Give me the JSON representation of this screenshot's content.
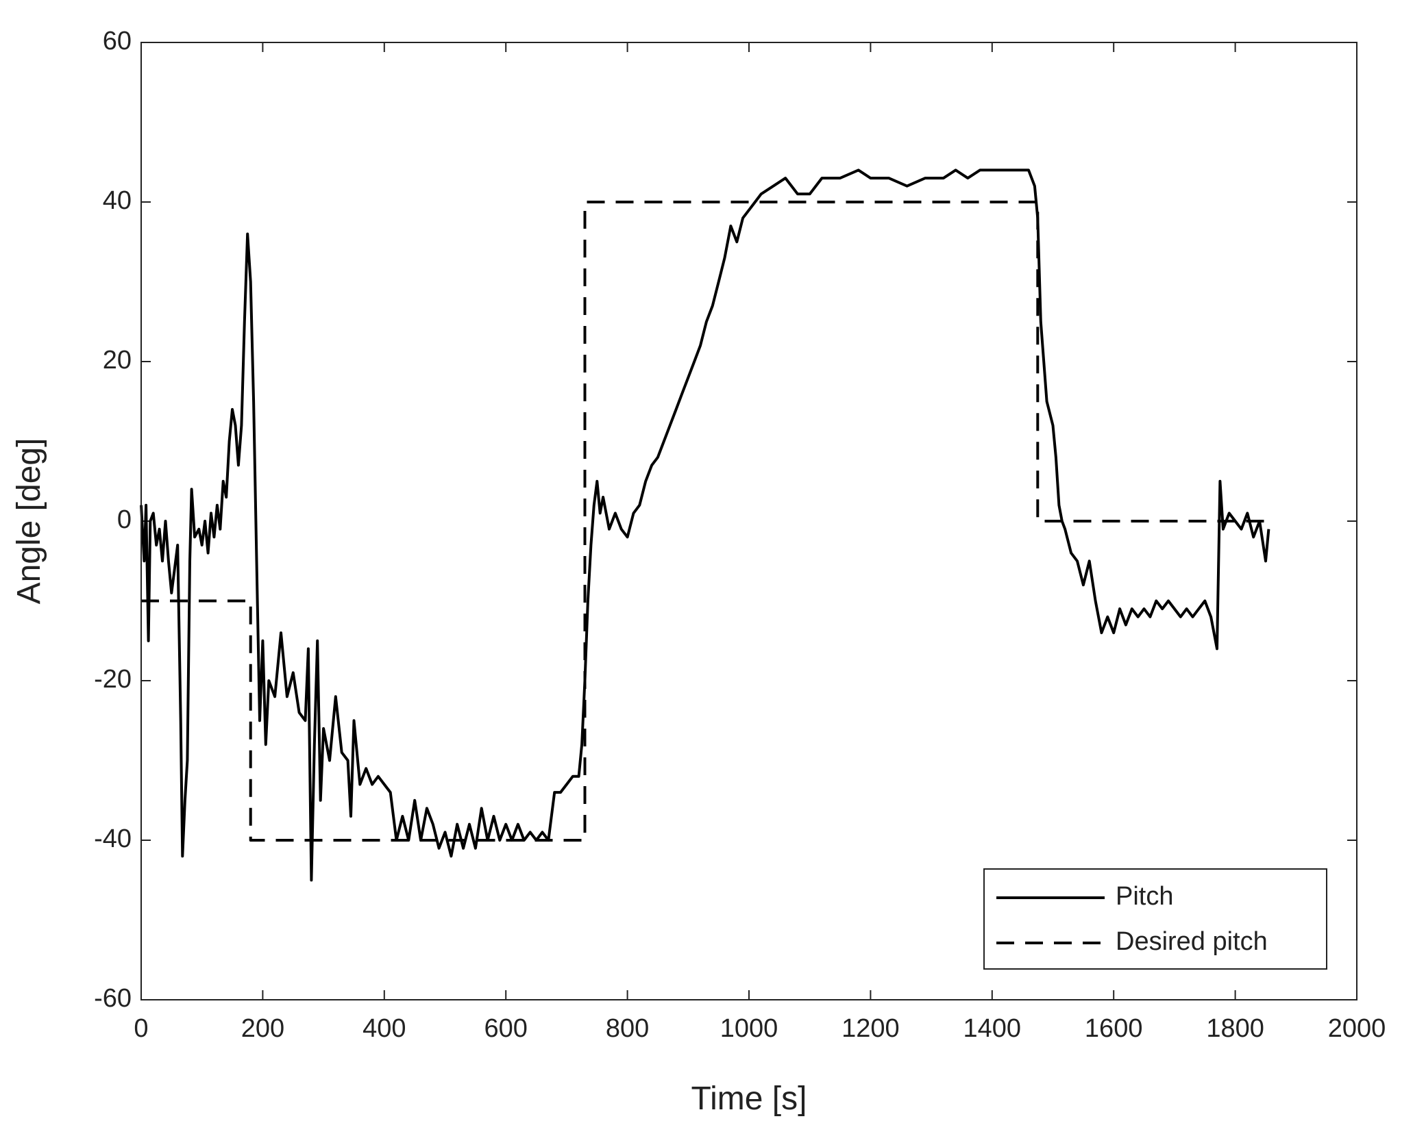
{
  "chart_data": {
    "type": "line",
    "xlabel": "Time [s]",
    "ylabel": "Angle [deg]",
    "xlim": [
      0,
      2000
    ],
    "xticks": [
      0,
      200,
      400,
      600,
      800,
      1000,
      1200,
      1400,
      1600,
      1800,
      2000
    ],
    "ylim": [
      -60,
      60
    ],
    "yticks": [
      -60,
      -40,
      -20,
      0,
      20,
      40,
      60
    ],
    "legend": "lower right",
    "series": [
      {
        "name": "Pitch",
        "color": "#000000",
        "dash": "solid",
        "x": [
          0,
          5,
          8,
          12,
          15,
          20,
          25,
          30,
          35,
          40,
          45,
          50,
          55,
          60,
          65,
          68,
          72,
          76,
          80,
          83,
          88,
          95,
          100,
          105,
          110,
          115,
          120,
          125,
          130,
          135,
          140,
          145,
          150,
          155,
          160,
          165,
          170,
          175,
          180,
          185,
          190,
          195,
          200,
          205,
          210,
          220,
          230,
          240,
          250,
          260,
          270,
          275,
          280,
          285,
          290,
          295,
          300,
          310,
          320,
          330,
          340,
          345,
          350,
          360,
          370,
          380,
          390,
          400,
          410,
          420,
          430,
          440,
          450,
          460,
          470,
          480,
          490,
          500,
          510,
          520,
          530,
          540,
          550,
          560,
          570,
          580,
          590,
          600,
          610,
          620,
          630,
          640,
          650,
          660,
          670,
          680,
          690,
          700,
          710,
          720,
          725,
          730,
          735,
          740,
          745,
          750,
          755,
          760,
          770,
          780,
          790,
          800,
          810,
          820,
          830,
          840,
          850,
          860,
          870,
          880,
          890,
          900,
          910,
          920,
          930,
          940,
          950,
          960,
          970,
          980,
          990,
          1000,
          1010,
          1020,
          1040,
          1060,
          1080,
          1100,
          1120,
          1150,
          1180,
          1200,
          1230,
          1260,
          1290,
          1320,
          1340,
          1360,
          1380,
          1400,
          1420,
          1440,
          1460,
          1470,
          1475,
          1480,
          1485,
          1490,
          1500,
          1505,
          1510,
          1515,
          1520,
          1530,
          1540,
          1550,
          1560,
          1570,
          1580,
          1590,
          1600,
          1610,
          1620,
          1630,
          1640,
          1650,
          1660,
          1670,
          1680,
          1690,
          1700,
          1710,
          1720,
          1730,
          1740,
          1750,
          1760,
          1770,
          1775,
          1780,
          1790,
          1800,
          1810,
          1820,
          1830,
          1840,
          1850,
          1855
        ],
        "values": [
          2,
          -5,
          2,
          -15,
          0,
          1,
          -3,
          -1,
          -5,
          0,
          -5,
          -9,
          -6,
          -3,
          -25,
          -42,
          -35,
          -30,
          -5,
          4,
          -2,
          -1,
          -3,
          0,
          -4,
          1,
          -2,
          2,
          -1,
          5,
          3,
          10,
          14,
          12,
          7,
          12,
          25,
          36,
          30,
          15,
          -5,
          -25,
          -15,
          -28,
          -20,
          -22,
          -14,
          -22,
          -19,
          -24,
          -25,
          -16,
          -45,
          -28,
          -15,
          -35,
          -26,
          -30,
          -22,
          -29,
          -30,
          -37,
          -25,
          -33,
          -31,
          -33,
          -32,
          -33,
          -34,
          -40,
          -37,
          -40,
          -35,
          -40,
          -36,
          -38,
          -41,
          -39,
          -42,
          -38,
          -41,
          -38,
          -41,
          -36,
          -40,
          -37,
          -40,
          -38,
          -40,
          -38,
          -40,
          -39,
          -40,
          -39,
          -40,
          -34,
          -34,
          -33,
          -32,
          -32,
          -28,
          -20,
          -10,
          -3,
          2,
          5,
          1,
          3,
          -1,
          1,
          -1,
          -2,
          1,
          2,
          5,
          7,
          8,
          10,
          12,
          14,
          16,
          18,
          20,
          22,
          25,
          27,
          30,
          33,
          37,
          35,
          38,
          39,
          40,
          41,
          42,
          43,
          41,
          41,
          43,
          43,
          44,
          43,
          43,
          42,
          43,
          43,
          44,
          43,
          44,
          44,
          44,
          44,
          44,
          42,
          38,
          25,
          20,
          15,
          12,
          8,
          2,
          0,
          -1,
          -4,
          -5,
          -8,
          -5,
          -10,
          -14,
          -12,
          -14,
          -11,
          -13,
          -11,
          -12,
          -11,
          -12,
          -10,
          -11,
          -10,
          -11,
          -12,
          -11,
          -12,
          -11,
          -10,
          -12,
          -16,
          5,
          -1,
          1,
          0,
          -1,
          1,
          -2,
          0,
          -5,
          -1
        ]
      },
      {
        "name": "Desired pitch",
        "color": "#000000",
        "dash": "dashed",
        "x": [
          0,
          180,
          180,
          730,
          730,
          1475,
          1475,
          1855
        ],
        "values": [
          -10,
          -10,
          -40,
          -40,
          40,
          40,
          0,
          0
        ]
      }
    ]
  }
}
